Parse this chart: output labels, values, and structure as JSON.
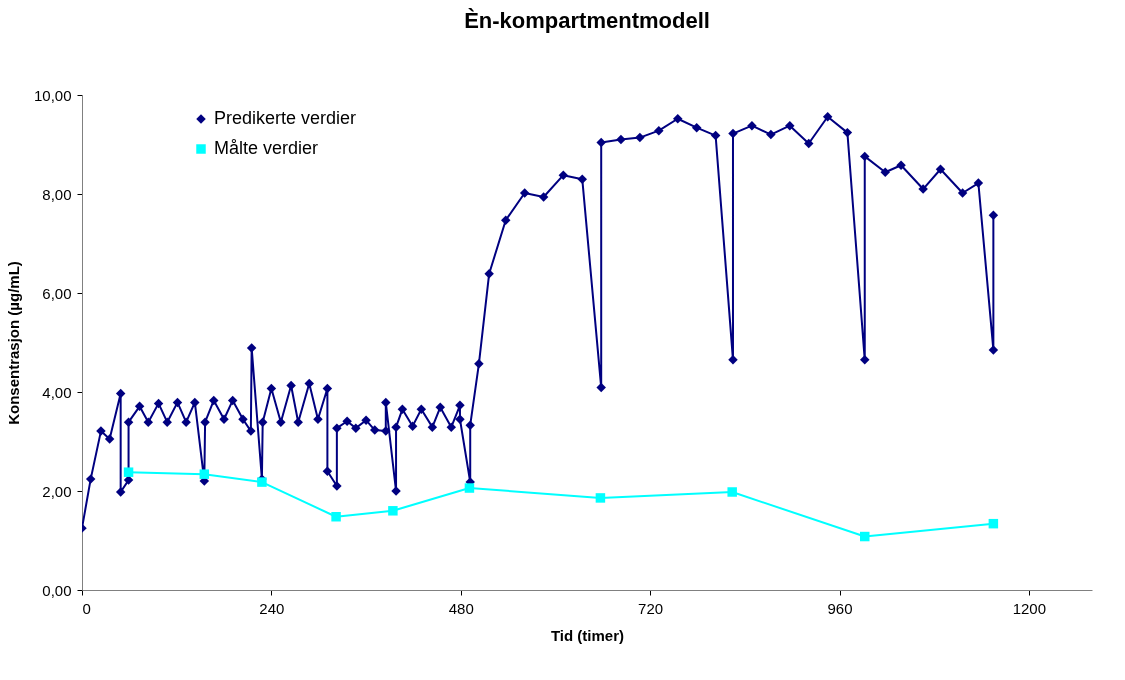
{
  "chart_data": {
    "type": "line",
    "title": "Èn-kompartmentmodell",
    "xlabel": "Tid (timer)",
    "ylabel": "Konsentrasjon (µg/mL)",
    "xlim": [
      0,
      1280
    ],
    "xticks": [
      0,
      240,
      480,
      720,
      960,
      1200
    ],
    "ylim": [
      0,
      10
    ],
    "yticks": [
      {
        "value": 0,
        "label": "0,00"
      },
      {
        "value": 2,
        "label": "2,00"
      },
      {
        "value": 4,
        "label": "4,00"
      },
      {
        "value": 6,
        "label": "6,00"
      },
      {
        "value": 8,
        "label": "8,00"
      },
      {
        "value": 10,
        "label": "10,00"
      }
    ],
    "grid": false,
    "legend": "top left",
    "series": [
      {
        "name": "Predikerte verdier",
        "color": "#000080",
        "marker": "diamond",
        "x": [
          0,
          11,
          24,
          35,
          49,
          49,
          59,
          59,
          73,
          84,
          97,
          108,
          121,
          132,
          143,
          155,
          156,
          167,
          180,
          191,
          204,
          214,
          215,
          228,
          229,
          240,
          252,
          265,
          274,
          288,
          299,
          311,
          311,
          323,
          323,
          336,
          347,
          360,
          371,
          385,
          385,
          398,
          398,
          406,
          419,
          430,
          444,
          454,
          468,
          479,
          479,
          492,
          492,
          503,
          516,
          537,
          561,
          585,
          610,
          634,
          658,
          658,
          683,
          707,
          731,
          755,
          779,
          803,
          825,
          825,
          849,
          873,
          897,
          921,
          945,
          970,
          992,
          992,
          1018,
          1038,
          1066,
          1088,
          1116,
          1136,
          1155,
          1155
        ],
        "values": [
          1.25,
          2.24,
          3.21,
          3.05,
          3.97,
          1.98,
          2.22,
          3.39,
          3.71,
          3.39,
          3.77,
          3.39,
          3.79,
          3.39,
          3.79,
          2.2,
          3.39,
          3.83,
          3.45,
          3.83,
          3.45,
          3.21,
          4.89,
          2.24,
          3.39,
          4.07,
          3.39,
          4.13,
          3.39,
          4.17,
          3.45,
          4.07,
          2.4,
          2.1,
          3.27,
          3.41,
          3.27,
          3.43,
          3.23,
          3.21,
          3.79,
          2.0,
          3.29,
          3.65,
          3.31,
          3.65,
          3.29,
          3.69,
          3.29,
          3.73,
          3.45,
          2.18,
          3.33,
          4.57,
          6.39,
          7.47,
          8.02,
          7.94,
          8.38,
          8.3,
          4.09,
          9.04,
          9.1,
          9.14,
          9.28,
          9.52,
          9.34,
          9.18,
          4.65,
          9.22,
          9.38,
          9.2,
          9.38,
          9.02,
          9.56,
          9.24,
          4.65,
          8.76,
          8.44,
          8.58,
          8.1,
          8.5,
          8.02,
          8.22,
          4.85,
          7.57
        ]
      },
      {
        "name": "Målte verdier",
        "color": "#00ffff",
        "marker": "square",
        "x": [
          59,
          155,
          228,
          322,
          394,
          491,
          657,
          824,
          992,
          1155
        ],
        "values": [
          2.38,
          2.34,
          2.18,
          1.48,
          1.6,
          2.06,
          1.86,
          1.98,
          1.08,
          1.34
        ]
      }
    ]
  }
}
